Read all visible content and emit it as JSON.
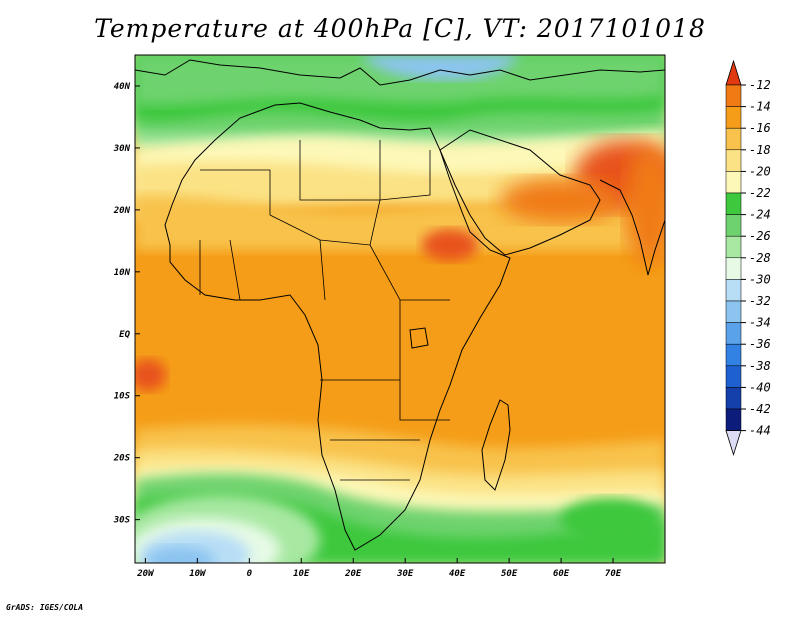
{
  "title": "Temperature at 400hPa [C], VT: 2017101018",
  "credit": "GrADS: IGES/COLA",
  "map": {
    "lon_range": [
      -22,
      80
    ],
    "lat_range": [
      -37,
      45
    ],
    "lon_ticks": [
      {
        "value": -20,
        "label": "20W"
      },
      {
        "value": -10,
        "label": "10W"
      },
      {
        "value": 0,
        "label": "0"
      },
      {
        "value": 10,
        "label": "10E"
      },
      {
        "value": 20,
        "label": "20E"
      },
      {
        "value": 30,
        "label": "30E"
      },
      {
        "value": 40,
        "label": "40E"
      },
      {
        "value": 50,
        "label": "50E"
      },
      {
        "value": 60,
        "label": "60E"
      },
      {
        "value": 70,
        "label": "70E"
      }
    ],
    "lat_ticks": [
      {
        "value": 40,
        "label": "40N"
      },
      {
        "value": 30,
        "label": "30N"
      },
      {
        "value": 20,
        "label": "20N"
      },
      {
        "value": 10,
        "label": "10N"
      },
      {
        "value": 0,
        "label": "EQ"
      },
      {
        "value": -10,
        "label": "10S"
      },
      {
        "value": -20,
        "label": "20S"
      },
      {
        "value": -30,
        "label": "30S"
      }
    ]
  },
  "colorbar": {
    "levels": [
      {
        "label": "-12",
        "color": "#e8531c"
      },
      {
        "label": "-14",
        "color": "#f07a14"
      },
      {
        "label": "-16",
        "color": "#f59d18"
      },
      {
        "label": "-18",
        "color": "#f8c24c"
      },
      {
        "label": "-20",
        "color": "#fbe285"
      },
      {
        "label": "-22",
        "color": "#fdf8b8"
      },
      {
        "label": "-24",
        "color": "#3ec83e"
      },
      {
        "label": "-26",
        "color": "#6ed36e"
      },
      {
        "label": "-28",
        "color": "#a8e8a2"
      },
      {
        "label": "-30",
        "color": "#e6fae6"
      },
      {
        "label": "-32",
        "color": "#b8def6"
      },
      {
        "label": "-34",
        "color": "#8cc4f0"
      },
      {
        "label": "-36",
        "color": "#5aa2ea"
      },
      {
        "label": "-38",
        "color": "#3282e4"
      },
      {
        "label": "-40",
        "color": "#1e60d0"
      },
      {
        "label": "-42",
        "color": "#1440ac"
      },
      {
        "label": "-44",
        "color": "#0c1c7a"
      }
    ],
    "top_arrow_color": "#e23a10",
    "bottom_arrow_color": "#dcdcf4"
  }
}
